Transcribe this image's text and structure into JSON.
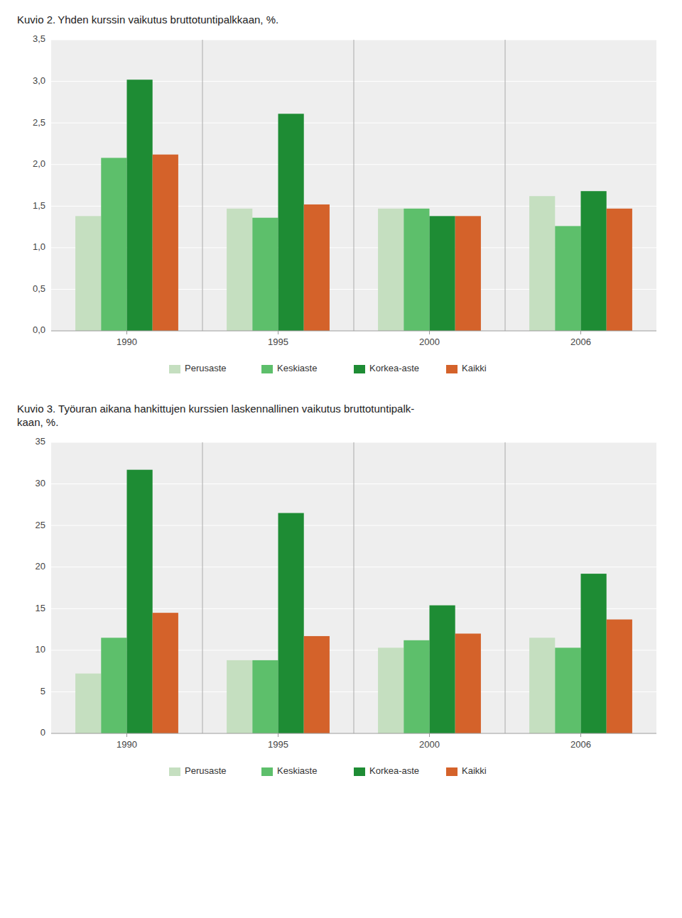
{
  "chart_data": [
    {
      "type": "bar",
      "title": "Kuvio 2. Yhden kurssin vaikutus bruttotuntipalkkaan, %.",
      "categories": [
        "1990",
        "1995",
        "2000",
        "2006"
      ],
      "series": [
        {
          "name": "Perusaste",
          "color": "#c5dfc0",
          "values": [
            1.38,
            1.47,
            1.47,
            1.62
          ]
        },
        {
          "name": "Keskiaste",
          "color": "#5dbf6b",
          "values": [
            2.08,
            1.36,
            1.47,
            1.26
          ]
        },
        {
          "name": "Korkea-aste",
          "color": "#1e8c34",
          "values": [
            3.02,
            2.61,
            1.38,
            1.68
          ]
        },
        {
          "name": "Kaikki",
          "color": "#d4622a",
          "values": [
            2.12,
            1.52,
            1.38,
            1.47
          ]
        }
      ],
      "ylim": [
        0,
        3.5
      ],
      "yticks": [
        {
          "value": 0.0,
          "label": "0,0"
        },
        {
          "value": 0.5,
          "label": "0,5"
        },
        {
          "value": 1.0,
          "label": "1,0"
        },
        {
          "value": 1.5,
          "label": "1,5"
        },
        {
          "value": 2.0,
          "label": "2,0"
        },
        {
          "value": 2.5,
          "label": "2,5"
        },
        {
          "value": 3.0,
          "label": "3,0"
        },
        {
          "value": 3.5,
          "label": "3,5"
        }
      ],
      "grid": true,
      "legend": "bottom"
    },
    {
      "type": "bar",
      "title": "Kuvio 3. Työuran aikana hankittujen kurssien laskennallinen vaikutus bruttotuntipalk-\nkaan, %.",
      "categories": [
        "1990",
        "1995",
        "2000",
        "2006"
      ],
      "series": [
        {
          "name": "Perusaste",
          "color": "#c5dfc0",
          "values": [
            7.2,
            8.8,
            10.3,
            11.5
          ]
        },
        {
          "name": "Keskiaste",
          "color": "#5dbf6b",
          "values": [
            11.5,
            8.8,
            11.2,
            10.3
          ]
        },
        {
          "name": "Korkea-aste",
          "color": "#1e8c34",
          "values": [
            31.7,
            26.5,
            15.4,
            19.2
          ]
        },
        {
          "name": "Kaikki",
          "color": "#d4622a",
          "values": [
            14.5,
            11.7,
            12.0,
            13.7
          ]
        }
      ],
      "ylim": [
        0,
        35
      ],
      "yticks": [
        0,
        5,
        10,
        15,
        20,
        25,
        30,
        35
      ],
      "grid": true,
      "legend": "bottom"
    }
  ]
}
